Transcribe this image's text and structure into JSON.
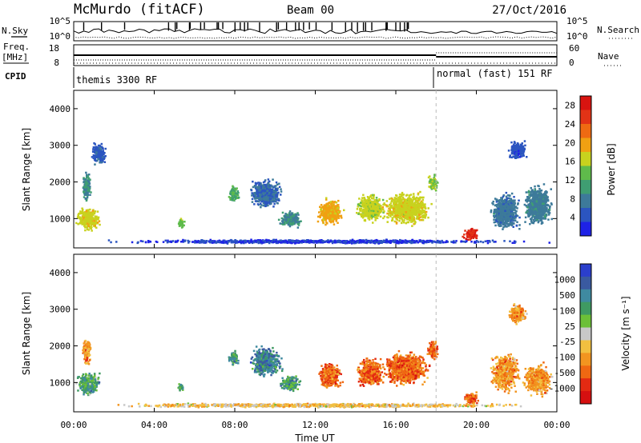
{
  "header": {
    "station": "McMurdo (fitACF)",
    "beam": "Beam 00",
    "date": "27/Oct/2016"
  },
  "top_panel": {
    "left_labels": [
      "N.Sky",
      "Freq.",
      "[MHz]",
      "CPID"
    ],
    "right_labels": [
      "N.Search",
      "Nave"
    ],
    "noise_ticks": [
      "10^5",
      "10^0"
    ],
    "freq_ticks": [
      "18",
      "8"
    ],
    "nave_ticks": [
      "60",
      "0"
    ],
    "cpid_segments": [
      {
        "label": "themis 3300 RF",
        "start_h": 0
      },
      {
        "label": "normal (fast) 151 RF",
        "start_h": 18
      }
    ]
  },
  "colors": {
    "power": [
      "#1e22e6",
      "#2b55c0",
      "#3d7a9a",
      "#3f9e72",
      "#5fbb4b",
      "#c8d21e",
      "#f0a012",
      "#ef6a12",
      "#e23316",
      "#d81410"
    ],
    "velocity": [
      "#2b3fcc",
      "#3a5aa0",
      "#3f8aa0",
      "#3f9a62",
      "#6cc038",
      "#c8c8c8",
      "#f2c040",
      "#f29520",
      "#ef6812",
      "#e32a12",
      "#d61010"
    ]
  },
  "chart_data": [
    {
      "type": "heatmap",
      "name": "power",
      "xlabel": "Time UT",
      "ylabel": "Slant Range [km]",
      "xlim": [
        0,
        24
      ],
      "ylim": [
        200,
        4500
      ],
      "x_ticks": [
        "00:00",
        "04:00",
        "08:00",
        "12:00",
        "16:00",
        "20:00",
        "00:00"
      ],
      "y_ticks": [
        "1000",
        "2000",
        "3000",
        "4000"
      ],
      "colorbar": {
        "label": "Power [dB]",
        "ticks": [
          "28",
          "24",
          "20",
          "16",
          "12",
          "8",
          "4"
        ],
        "range": [
          0,
          30
        ]
      },
      "regions": [
        {
          "t": 0.7,
          "r": 1000,
          "w": 1.3,
          "h": 700,
          "v": 19
        },
        {
          "t": 0.6,
          "r": 1900,
          "w": 0.5,
          "h": 900,
          "v": 11
        },
        {
          "t": 1.2,
          "r": 2800,
          "w": 0.8,
          "h": 700,
          "v": 7
        },
        {
          "t": 5.3,
          "r": 900,
          "w": 0.4,
          "h": 300,
          "v": 16
        },
        {
          "t": 7.9,
          "r": 1700,
          "w": 0.6,
          "h": 500,
          "v": 14
        },
        {
          "t": 9.5,
          "r": 1700,
          "w": 1.8,
          "h": 900,
          "v": 8
        },
        {
          "t": 10.7,
          "r": 1000,
          "w": 1.2,
          "h": 500,
          "v": 11
        },
        {
          "t": 12.7,
          "r": 1200,
          "w": 1.4,
          "h": 800,
          "v": 21
        },
        {
          "t": 14.7,
          "r": 1300,
          "w": 1.6,
          "h": 900,
          "v": 18
        },
        {
          "t": 16.5,
          "r": 1300,
          "w": 2.6,
          "h": 1000,
          "v": 19
        },
        {
          "t": 17.8,
          "r": 2000,
          "w": 0.6,
          "h": 500,
          "v": 17
        },
        {
          "t": 19.7,
          "r": 600,
          "w": 0.9,
          "h": 400,
          "v": 29
        },
        {
          "t": 21.4,
          "r": 1200,
          "w": 1.6,
          "h": 1200,
          "v": 9
        },
        {
          "t": 23.0,
          "r": 1400,
          "w": 1.6,
          "h": 1300,
          "v": 10
        },
        {
          "t": 22.0,
          "r": 2900,
          "w": 1.0,
          "h": 600,
          "v": 6
        },
        {
          "t": 12.0,
          "r": 400,
          "w": 24,
          "h": 120,
          "v": 5
        }
      ]
    },
    {
      "type": "heatmap",
      "name": "velocity",
      "xlabel": "Time UT",
      "ylabel": "Slant Range [km]",
      "xlim": [
        0,
        24
      ],
      "ylim": [
        200,
        4500
      ],
      "x_ticks": [
        "00:00",
        "04:00",
        "08:00",
        "12:00",
        "16:00",
        "20:00",
        "00:00"
      ],
      "y_ticks": [
        "1000",
        "2000",
        "3000",
        "4000"
      ],
      "colorbar": {
        "label": "Velocity [m s⁻¹]",
        "ticks": [
          "1000",
          "500",
          "100",
          "25",
          "-25",
          "-100",
          "-500",
          "-1000"
        ]
      },
      "regions": [
        {
          "t": 0.7,
          "r": 1000,
          "w": 1.3,
          "h": 700,
          "v": 3
        },
        {
          "t": 0.6,
          "r": 1900,
          "w": 0.5,
          "h": 900,
          "v": 7
        },
        {
          "t": 5.3,
          "r": 900,
          "w": 0.4,
          "h": 300,
          "v": 3
        },
        {
          "t": 7.9,
          "r": 1700,
          "w": 0.6,
          "h": 500,
          "v": 3
        },
        {
          "t": 9.5,
          "r": 1600,
          "w": 1.8,
          "h": 900,
          "v": 2
        },
        {
          "t": 10.7,
          "r": 1000,
          "w": 1.2,
          "h": 500,
          "v": 3
        },
        {
          "t": 12.7,
          "r": 1200,
          "w": 1.4,
          "h": 800,
          "v": 8
        },
        {
          "t": 14.7,
          "r": 1300,
          "w": 1.6,
          "h": 900,
          "v": 8
        },
        {
          "t": 16.5,
          "r": 1400,
          "w": 2.6,
          "h": 1000,
          "v": 8
        },
        {
          "t": 17.8,
          "r": 1900,
          "w": 0.6,
          "h": 600,
          "v": 8
        },
        {
          "t": 19.7,
          "r": 600,
          "w": 0.9,
          "h": 400,
          "v": 8
        },
        {
          "t": 21.4,
          "r": 1300,
          "w": 1.6,
          "h": 1200,
          "v": 7
        },
        {
          "t": 23.0,
          "r": 1100,
          "w": 1.6,
          "h": 1000,
          "v": 7
        },
        {
          "t": 22.0,
          "r": 2900,
          "w": 1.0,
          "h": 600,
          "v": 7
        },
        {
          "t": 12.0,
          "r": 400,
          "w": 24,
          "h": 120,
          "v": 6
        }
      ]
    }
  ]
}
